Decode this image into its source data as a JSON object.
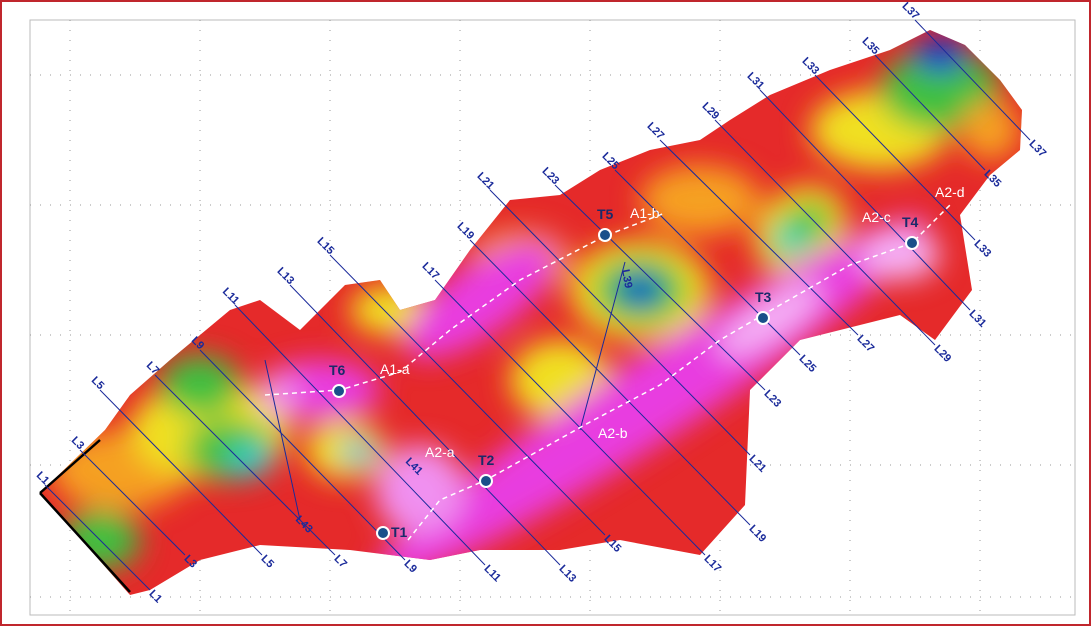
{
  "survey_lines": [
    "L1",
    "L3",
    "L5",
    "L7",
    "L9",
    "L11",
    "L13",
    "L15",
    "L17",
    "L19",
    "L21",
    "L23",
    "L25",
    "L27",
    "L29",
    "L31",
    "L33",
    "L35",
    "L37"
  ],
  "tie_lines": [
    "L39",
    "L41",
    "L43"
  ],
  "targets": [
    "T1",
    "T2",
    "T3",
    "T4",
    "T5",
    "T6"
  ],
  "anomalies": [
    "A1-a",
    "A1-b",
    "A2-a",
    "A2-b",
    "A2-c",
    "A2-d"
  ]
}
